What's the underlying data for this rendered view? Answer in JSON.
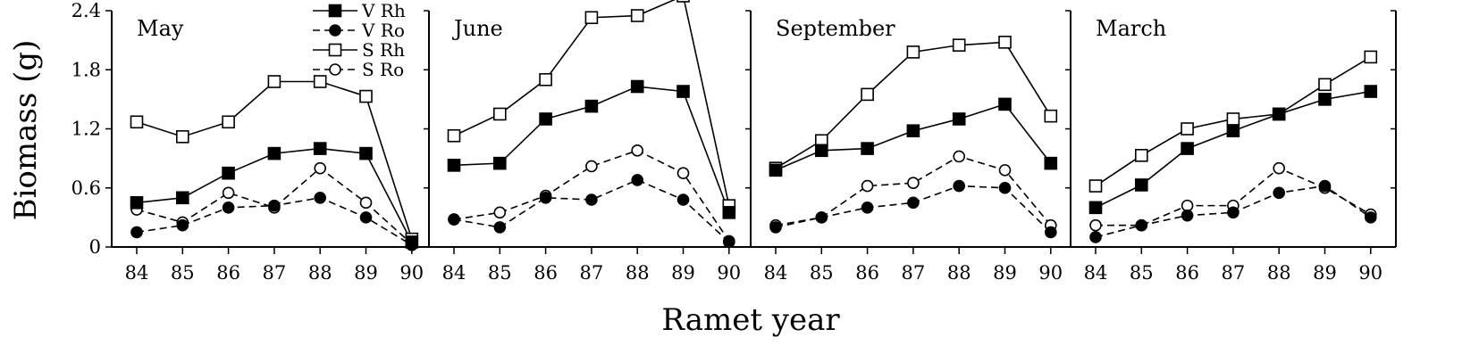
{
  "chart_data": {
    "type": "line",
    "ylabel": "Biomass (g)",
    "xlabel": "Ramet year",
    "categories": [
      "84",
      "85",
      "86",
      "87",
      "88",
      "89",
      "90"
    ],
    "ylim": [
      0,
      2.4
    ],
    "yticks": [
      0,
      0.6,
      1.2,
      1.8,
      2.4
    ],
    "ytick_labels": [
      "0",
      "0.6",
      "1.2",
      "1.8",
      "2.4"
    ],
    "legend": {
      "placement": "top, inside first panel",
      "entries": [
        {
          "label": "V Rh",
          "marker": "square",
          "fill": "filled",
          "line": "solid"
        },
        {
          "label": "V Ro",
          "marker": "circle",
          "fill": "filled",
          "line": "dashed"
        },
        {
          "label": "S Rh",
          "marker": "square",
          "fill": "open",
          "line": "solid"
        },
        {
          "label": "S Ro",
          "marker": "circle",
          "fill": "open",
          "line": "dashed"
        }
      ]
    },
    "panels": [
      {
        "title": "May",
        "series": [
          {
            "name": "V Rh",
            "values": [
              0.45,
              0.5,
              0.75,
              0.95,
              1.0,
              0.95,
              0.05
            ]
          },
          {
            "name": "V Ro",
            "values": [
              0.15,
              0.22,
              0.4,
              0.42,
              0.5,
              0.3,
              0.02
            ]
          },
          {
            "name": "S Rh",
            "values": [
              1.27,
              1.12,
              1.27,
              1.68,
              1.68,
              1.53,
              0.08
            ]
          },
          {
            "name": "S Ro",
            "values": [
              0.38,
              0.25,
              0.55,
              0.4,
              0.8,
              0.45,
              0.03
            ]
          }
        ]
      },
      {
        "title": "June",
        "series": [
          {
            "name": "V Rh",
            "values": [
              0.83,
              0.85,
              1.3,
              1.43,
              1.63,
              1.58,
              0.35
            ]
          },
          {
            "name": "V Ro",
            "values": [
              0.28,
              0.2,
              0.5,
              0.48,
              0.68,
              0.48,
              0.05
            ]
          },
          {
            "name": "S Rh",
            "values": [
              1.13,
              1.35,
              1.7,
              2.33,
              2.35,
              2.55,
              0.42
            ]
          },
          {
            "name": "S Ro",
            "values": [
              0.28,
              0.35,
              0.52,
              0.82,
              0.98,
              0.75,
              0.06
            ]
          }
        ]
      },
      {
        "title": "September",
        "series": [
          {
            "name": "V Rh",
            "values": [
              0.78,
              0.98,
              1.0,
              1.18,
              1.3,
              1.45,
              0.85
            ]
          },
          {
            "name": "V Ro",
            "values": [
              0.2,
              0.3,
              0.4,
              0.45,
              0.62,
              0.6,
              0.15
            ]
          },
          {
            "name": "S Rh",
            "values": [
              0.8,
              1.08,
              1.55,
              1.98,
              2.05,
              2.08,
              1.33
            ]
          },
          {
            "name": "S Ro",
            "values": [
              0.22,
              0.3,
              0.62,
              0.65,
              0.92,
              0.78,
              0.22
            ]
          }
        ]
      },
      {
        "title": "March",
        "series": [
          {
            "name": "V Rh",
            "values": [
              0.4,
              0.63,
              1.0,
              1.18,
              1.35,
              1.5,
              1.58
            ]
          },
          {
            "name": "V Ro",
            "values": [
              0.1,
              0.22,
              0.32,
              0.35,
              0.55,
              0.62,
              0.3
            ]
          },
          {
            "name": "S Rh",
            "values": [
              0.62,
              0.93,
              1.2,
              1.3,
              1.35,
              1.65,
              1.93
            ]
          },
          {
            "name": "S Ro",
            "values": [
              0.22,
              0.22,
              0.42,
              0.42,
              0.8,
              0.6,
              0.33
            ]
          }
        ]
      }
    ]
  }
}
